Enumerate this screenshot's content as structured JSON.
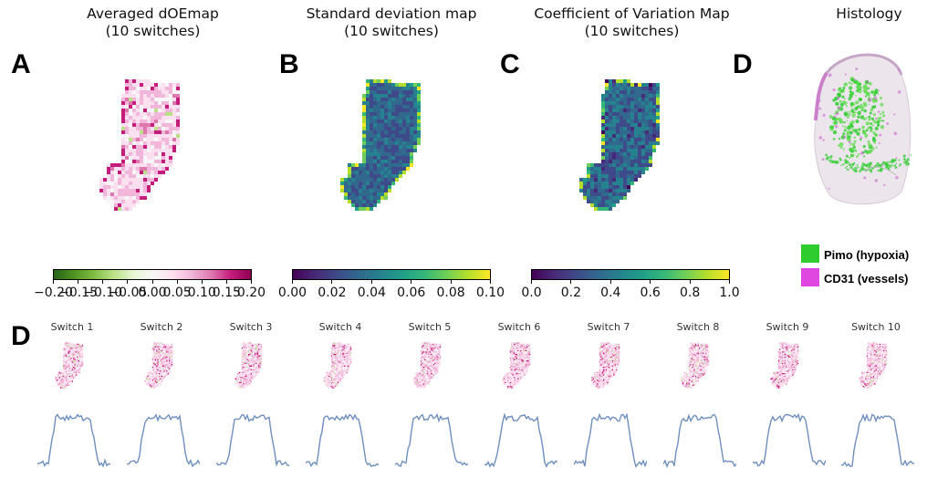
{
  "panels": [
    {
      "title": "Averaged dOEmap\n(10 switches)",
      "letter": "A"
    },
    {
      "title": "Standard deviation map\n(10 switches)",
      "letter": "B"
    },
    {
      "title": "Coefficient of Variation Map\n(10 switches)",
      "letter": "C"
    },
    {
      "title": "Histology",
      "letter": "D"
    }
  ],
  "row_letter": "D",
  "colorbars": [
    {
      "colormap": "PiYG",
      "ticks": [
        "−0.20",
        "−0.15",
        "−0.10",
        "−0.05",
        "0.00",
        "0.05",
        "0.10",
        "0.15",
        "0.20"
      ]
    },
    {
      "colormap": "viridis",
      "ticks": [
        "0.00",
        "0.02",
        "0.04",
        "0.06",
        "0.08",
        "0.10"
      ]
    },
    {
      "colormap": "viridis",
      "ticks": [
        "0.0",
        "0.2",
        "0.4",
        "0.6",
        "0.8",
        "1.0"
      ]
    }
  ],
  "legend": [
    {
      "label": "Pimo (hypoxia)",
      "color": "#2ecc2e"
    },
    {
      "label": "CD31 (vessels)",
      "color": "#e046e0"
    }
  ],
  "switches": [
    "Switch 1",
    "Switch 2",
    "Switch 3",
    "Switch 4",
    "Switch 5",
    "Switch 6",
    "Switch 7",
    "Switch 8",
    "Switch 9",
    "Switch 10"
  ],
  "colors": {
    "trace": "#6f8fbf"
  }
}
